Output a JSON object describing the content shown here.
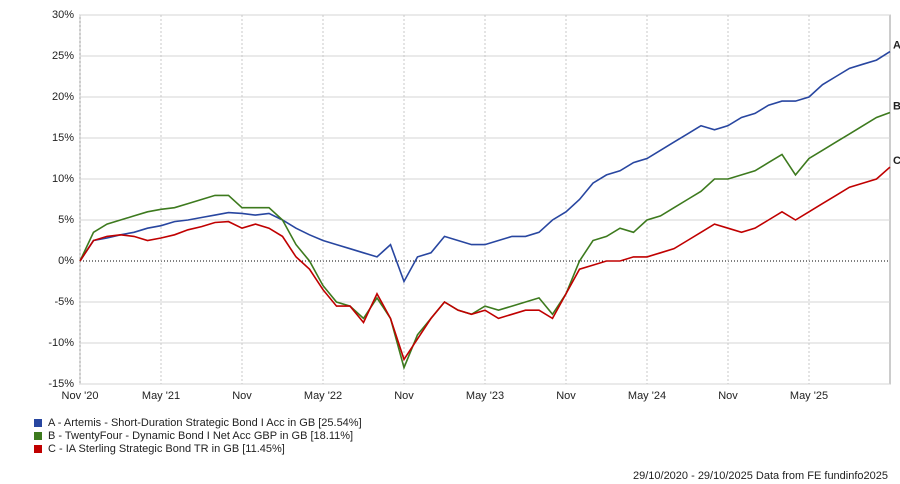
{
  "chart_data": {
    "type": "line",
    "x": [
      0,
      1,
      2,
      3,
      4,
      5,
      6,
      7,
      8,
      9,
      10,
      11,
      12,
      13,
      14,
      15,
      16,
      17,
      18,
      19,
      20,
      21,
      22,
      23,
      24,
      25,
      26,
      27,
      28,
      29,
      30,
      31,
      32,
      33,
      34,
      35,
      36,
      37,
      38,
      39,
      40,
      41,
      42,
      43,
      44,
      45,
      46,
      47,
      48,
      49,
      50,
      51,
      52,
      53,
      54,
      55,
      56,
      57,
      58,
      59,
      60
    ],
    "xlim": [
      0,
      60
    ],
    "xticks": [
      {
        "value": 0,
        "label": "Nov '20"
      },
      {
        "value": 6,
        "label": "May '21"
      },
      {
        "value": 12,
        "label": "Nov"
      },
      {
        "value": 18,
        "label": "May '22"
      },
      {
        "value": 24,
        "label": "Nov"
      },
      {
        "value": 30,
        "label": "May '23"
      },
      {
        "value": 36,
        "label": "Nov"
      },
      {
        "value": 42,
        "label": "May '24"
      },
      {
        "value": 48,
        "label": "Nov"
      },
      {
        "value": 54,
        "label": "May '25"
      }
    ],
    "ylim": [
      -15,
      30
    ],
    "yticks": [
      {
        "value": -15,
        "label": "-15%"
      },
      {
        "value": -10,
        "label": "-10%"
      },
      {
        "value": -5,
        "label": "-5%"
      },
      {
        "value": 0,
        "label": "0%"
      },
      {
        "value": 5,
        "label": "5%"
      },
      {
        "value": 10,
        "label": "10%"
      },
      {
        "value": 15,
        "label": "15%"
      },
      {
        "value": 20,
        "label": "20%"
      },
      {
        "value": 25,
        "label": "25%"
      },
      {
        "value": 30,
        "label": "30%"
      }
    ],
    "grid": true,
    "series": [
      {
        "name": "A - Artemis - Short-Duration Strategic Bond I Acc in GB [25.54%]",
        "end_label": "A",
        "color": "#2846a0",
        "values": [
          0,
          2.5,
          2.8,
          3.2,
          3.5,
          4.0,
          4.3,
          4.8,
          5.0,
          5.3,
          5.6,
          5.9,
          5.8,
          5.6,
          5.8,
          5.0,
          4.0,
          3.2,
          2.5,
          2.0,
          1.5,
          1.0,
          0.5,
          2.0,
          -2.5,
          0.5,
          1.0,
          3.0,
          2.5,
          2.0,
          2.0,
          2.5,
          3.0,
          3.0,
          3.5,
          5.0,
          6.0,
          7.5,
          9.5,
          10.5,
          11.0,
          12.0,
          12.5,
          13.5,
          14.5,
          15.5,
          16.5,
          16.0,
          16.5,
          17.5,
          18.0,
          19.0,
          19.5,
          19.5,
          20.0,
          21.5,
          22.5,
          23.5,
          24.0,
          24.5,
          25.54
        ]
      },
      {
        "name": "B - TwentyFour - Dynamic Bond I Net Acc GBP in GB [18.11%]",
        "end_label": "B",
        "color": "#3d7a1e",
        "values": [
          0,
          3.5,
          4.5,
          5.0,
          5.5,
          6.0,
          6.3,
          6.5,
          7.0,
          7.5,
          8.0,
          8.0,
          6.5,
          6.5,
          6.5,
          5.0,
          2.0,
          0,
          -3.0,
          -5.0,
          -5.5,
          -7.0,
          -4.5,
          -7.0,
          -13.0,
          -9.0,
          -7.0,
          -5.0,
          -6.0,
          -6.5,
          -5.5,
          -6.0,
          -5.5,
          -5.0,
          -4.5,
          -6.5,
          -4.0,
          0,
          2.5,
          3.0,
          4.0,
          3.5,
          5.0,
          5.5,
          6.5,
          7.5,
          8.5,
          10.0,
          10.0,
          10.5,
          11.0,
          12.0,
          13.0,
          10.5,
          12.5,
          13.5,
          14.5,
          15.5,
          16.5,
          17.5,
          18.11
        ]
      },
      {
        "name": "C - IA Sterling Strategic Bond TR in GB [11.45%]",
        "end_label": "C",
        "color": "#c00000",
        "values": [
          0,
          2.5,
          3.0,
          3.2,
          3.0,
          2.5,
          2.8,
          3.2,
          3.8,
          4.2,
          4.7,
          4.8,
          4.0,
          4.5,
          4.0,
          3.0,
          0.5,
          -1.0,
          -3.5,
          -5.5,
          -5.5,
          -7.5,
          -4.0,
          -7.0,
          -12.0,
          -9.5,
          -7.0,
          -5.0,
          -6.0,
          -6.5,
          -6.0,
          -7.0,
          -6.5,
          -6.0,
          -6.0,
          -7.0,
          -4.0,
          -1.0,
          -0.5,
          0,
          0,
          0.5,
          0.5,
          1.0,
          1.5,
          2.5,
          3.5,
          4.5,
          4.0,
          3.5,
          4.0,
          5.0,
          6.0,
          5.0,
          6.0,
          7.0,
          8.0,
          9.0,
          9.5,
          10.0,
          11.45
        ]
      }
    ],
    "footer": "29/10/2020 - 29/10/2025 Data from FE fundinfo2025"
  }
}
